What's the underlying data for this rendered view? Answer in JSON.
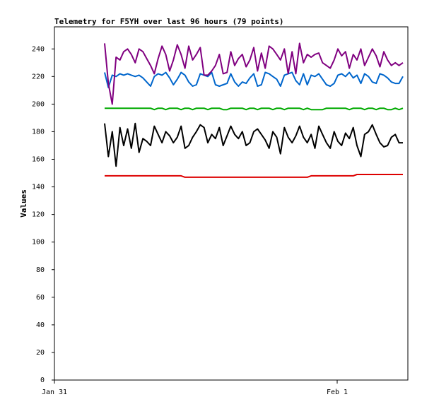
{
  "chart_data": {
    "type": "line",
    "title": "Telemetry for F5YH over last 96 hours (79 points)",
    "y_label": "Values",
    "xlim": [
      0,
      30
    ],
    "xticks": [
      {
        "value": 0,
        "label": "Jan 31"
      },
      {
        "value": 24,
        "label": "Feb 1"
      }
    ],
    "ylim": [
      0,
      256
    ],
    "yticks": [
      0,
      20,
      40,
      60,
      80,
      100,
      120,
      140,
      160,
      180,
      200,
      220,
      240
    ],
    "x": [
      4.26,
      4.58,
      4.91,
      5.23,
      5.56,
      5.88,
      6.21,
      6.53,
      6.86,
      7.18,
      7.51,
      7.83,
      8.16,
      8.48,
      8.8,
      9.13,
      9.45,
      9.78,
      10.1,
      10.43,
      10.75,
      11.08,
      11.4,
      11.73,
      12.05,
      12.38,
      12.7,
      13.02,
      13.35,
      13.67,
      14.0,
      14.32,
      14.65,
      14.97,
      15.3,
      15.62,
      15.95,
      16.27,
      16.59,
      16.92,
      17.24,
      17.57,
      17.89,
      18.22,
      18.54,
      18.87,
      19.19,
      19.52,
      19.84,
      20.17,
      20.49,
      20.81,
      21.14,
      21.46,
      21.79,
      22.11,
      22.44,
      22.76,
      23.09,
      23.41,
      23.74,
      24.06,
      24.38,
      24.71,
      25.03,
      25.36,
      25.68,
      26.01,
      26.33,
      26.66,
      26.98,
      27.31,
      27.63,
      27.96,
      28.28,
      28.6,
      28.93,
      29.25,
      29.58
    ],
    "series": [
      {
        "color": "#dd0000",
        "values": [
          148,
          148,
          148,
          148,
          148,
          148,
          148,
          148,
          148,
          148,
          148,
          148,
          148,
          148,
          148,
          148,
          148,
          148,
          148,
          148,
          148,
          147,
          147,
          147,
          147,
          147,
          147,
          147,
          147,
          147,
          147,
          147,
          147,
          147,
          147,
          147,
          147,
          147,
          147,
          147,
          147,
          147,
          147,
          147,
          147,
          147,
          147,
          147,
          147,
          147,
          147,
          147,
          147,
          147,
          148,
          148,
          148,
          148,
          148,
          148,
          148,
          148,
          148,
          148,
          148,
          148,
          149,
          149,
          149,
          149,
          149,
          149,
          149,
          149,
          149,
          149,
          149,
          149,
          149
        ]
      },
      {
        "color": "#00aa00",
        "values": [
          197,
          197,
          197,
          197,
          197,
          197,
          197,
          197,
          197,
          197,
          197,
          197,
          197,
          196,
          197,
          197,
          196,
          197,
          197,
          197,
          196,
          197,
          197,
          196,
          197,
          197,
          197,
          196,
          197,
          197,
          197,
          196,
          196,
          197,
          197,
          197,
          197,
          196,
          197,
          197,
          196,
          197,
          197,
          197,
          196,
          197,
          197,
          196,
          197,
          197,
          197,
          197,
          196,
          197,
          196,
          196,
          196,
          196,
          197,
          197,
          197,
          197,
          197,
          197,
          196,
          197,
          197,
          197,
          196,
          197,
          197,
          196,
          197,
          197,
          196,
          196,
          197,
          196,
          197
        ]
      },
      {
        "color": "#0066cc",
        "values": [
          223,
          212,
          221,
          220,
          222,
          221,
          222,
          221,
          220,
          221,
          219,
          216,
          213,
          220,
          222,
          221,
          223,
          219,
          214,
          218,
          223,
          221,
          216,
          213,
          214,
          222,
          221,
          220,
          223,
          214,
          213,
          214,
          215,
          222,
          216,
          213,
          216,
          215,
          219,
          222,
          213,
          214,
          223,
          222,
          220,
          218,
          213,
          221,
          222,
          223,
          217,
          214,
          222,
          214,
          221,
          220,
          222,
          218,
          214,
          213,
          215,
          221,
          222,
          220,
          223,
          219,
          221,
          215,
          222,
          220,
          216,
          215,
          222,
          221,
          219,
          216,
          215,
          215,
          220
        ]
      },
      {
        "color": "#800080",
        "values": [
          244,
          215,
          200,
          234,
          232,
          238,
          240,
          236,
          230,
          240,
          238,
          233,
          228,
          222,
          233,
          242,
          236,
          224,
          232,
          243,
          236,
          226,
          242,
          232,
          236,
          241,
          221,
          221,
          224,
          228,
          236,
          222,
          223,
          238,
          228,
          233,
          236,
          227,
          232,
          241,
          224,
          237,
          226,
          242,
          240,
          236,
          232,
          240,
          222,
          238,
          222,
          244,
          230,
          236,
          234,
          236,
          237,
          230,
          228,
          226,
          232,
          240,
          235,
          238,
          226,
          236,
          232,
          240,
          228,
          234,
          240,
          235,
          227,
          238,
          232,
          228,
          230,
          228,
          230
        ]
      },
      {
        "color": "#000000",
        "values": [
          186,
          162,
          180,
          155,
          183,
          170,
          182,
          168,
          186,
          165,
          175,
          173,
          170,
          184,
          178,
          172,
          180,
          177,
          172,
          176,
          184,
          168,
          170,
          176,
          180,
          185,
          183,
          172,
          178,
          175,
          183,
          170,
          177,
          184,
          178,
          175,
          180,
          170,
          172,
          180,
          182,
          178,
          174,
          168,
          180,
          176,
          164,
          183,
          176,
          172,
          177,
          184,
          176,
          172,
          178,
          168,
          184,
          178,
          172,
          168,
          180,
          173,
          170,
          179,
          175,
          183,
          170,
          162,
          178,
          180,
          185,
          178,
          172,
          169,
          170,
          176,
          178,
          172,
          172
        ]
      }
    ]
  }
}
